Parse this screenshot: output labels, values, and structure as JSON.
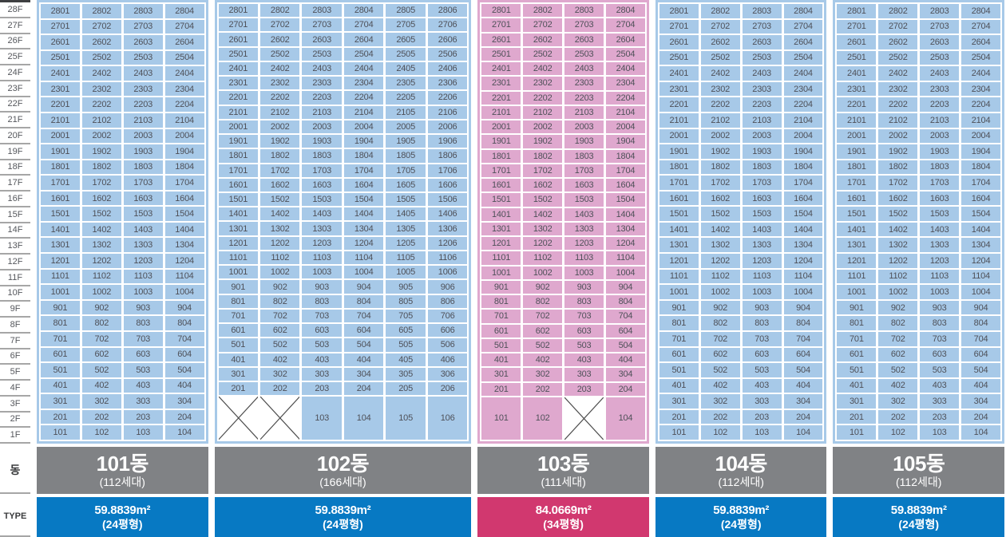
{
  "axis": {
    "dong_label": "동",
    "type_label": "TYPE",
    "floors": [
      "28F",
      "27F",
      "26F",
      "25F",
      "24F",
      "23F",
      "22F",
      "21F",
      "20F",
      "19F",
      "18F",
      "17F",
      "16F",
      "15F",
      "14F",
      "13F",
      "12F",
      "11F",
      "10F",
      "9F",
      "8F",
      "7F",
      "6F",
      "5F",
      "4F",
      "3F",
      "2F",
      "1F"
    ]
  },
  "colors": {
    "cell_blue": "#a7c9e8",
    "cell_pink": "#dfa8ce",
    "header_gray": "#808285",
    "type_blue": "#0779c3",
    "type_pink": "#d1386f",
    "cross_line": "#4c4c4c",
    "cell_text": "#4e5058"
  },
  "buildings": [
    {
      "name": "101동",
      "households": "(112세대)",
      "theme": "blue",
      "area_value": "59.8839",
      "area_unit": "m²",
      "pyeong": "(24평형)",
      "units_per_floor": 4,
      "units": [
        [
          2801,
          2802,
          2803,
          2804
        ],
        [
          2701,
          2702,
          2703,
          2704
        ],
        [
          2601,
          2602,
          2603,
          2604
        ],
        [
          2501,
          2502,
          2503,
          2504
        ],
        [
          2401,
          2402,
          2403,
          2404
        ],
        [
          2301,
          2302,
          2303,
          2304
        ],
        [
          2201,
          2202,
          2203,
          2204
        ],
        [
          2101,
          2102,
          2103,
          2104
        ],
        [
          2001,
          2002,
          2003,
          2004
        ],
        [
          1901,
          1902,
          1903,
          1904
        ],
        [
          1801,
          1802,
          1803,
          1804
        ],
        [
          1701,
          1702,
          1703,
          1704
        ],
        [
          1601,
          1602,
          1603,
          1604
        ],
        [
          1501,
          1502,
          1503,
          1504
        ],
        [
          1401,
          1402,
          1403,
          1404
        ],
        [
          1301,
          1302,
          1303,
          1304
        ],
        [
          1201,
          1202,
          1203,
          1204
        ],
        [
          1101,
          1102,
          1103,
          1104
        ],
        [
          1001,
          1002,
          1003,
          1004
        ],
        [
          901,
          902,
          903,
          904
        ],
        [
          801,
          802,
          803,
          804
        ],
        [
          701,
          702,
          703,
          704
        ],
        [
          601,
          602,
          603,
          604
        ],
        [
          501,
          502,
          503,
          504
        ],
        [
          401,
          402,
          403,
          404
        ],
        [
          301,
          302,
          303,
          304
        ],
        [
          201,
          202,
          203,
          204
        ],
        [
          101,
          102,
          103,
          104
        ]
      ]
    },
    {
      "name": "102동",
      "households": "(166세대)",
      "theme": "blue",
      "area_value": "59.8839",
      "area_unit": "m²",
      "pyeong": "(24평형)",
      "units_per_floor": 6,
      "units": [
        [
          2801,
          2802,
          2803,
          2804,
          2805,
          2806
        ],
        [
          2701,
          2702,
          2703,
          2704,
          2705,
          2706
        ],
        [
          2601,
          2602,
          2603,
          2604,
          2605,
          2606
        ],
        [
          2501,
          2502,
          2503,
          2504,
          2505,
          2506
        ],
        [
          2401,
          2402,
          2403,
          2404,
          2405,
          2406
        ],
        [
          2301,
          2302,
          2303,
          2304,
          2305,
          2306
        ],
        [
          2201,
          2202,
          2203,
          2204,
          2205,
          2206
        ],
        [
          2101,
          2102,
          2103,
          2104,
          2105,
          2106
        ],
        [
          2001,
          2002,
          2003,
          2004,
          2005,
          2006
        ],
        [
          1901,
          1902,
          1903,
          1904,
          1905,
          1906
        ],
        [
          1801,
          1802,
          1803,
          1804,
          1805,
          1806
        ],
        [
          1701,
          1702,
          1703,
          1704,
          1705,
          1706
        ],
        [
          1601,
          1602,
          1603,
          1604,
          1605,
          1606
        ],
        [
          1501,
          1502,
          1503,
          1504,
          1505,
          1506
        ],
        [
          1401,
          1402,
          1403,
          1404,
          1405,
          1406
        ],
        [
          1301,
          1302,
          1303,
          1304,
          1305,
          1306
        ],
        [
          1201,
          1202,
          1203,
          1204,
          1205,
          1206
        ],
        [
          1101,
          1102,
          1103,
          1104,
          1105,
          1106
        ],
        [
          1001,
          1002,
          1003,
          1004,
          1005,
          1006
        ],
        [
          901,
          902,
          903,
          904,
          905,
          906
        ],
        [
          801,
          802,
          803,
          804,
          805,
          806
        ],
        [
          701,
          702,
          703,
          704,
          705,
          706
        ],
        [
          601,
          602,
          603,
          604,
          605,
          606
        ],
        [
          501,
          502,
          503,
          504,
          505,
          506
        ],
        [
          401,
          402,
          403,
          404,
          405,
          406
        ],
        [
          301,
          302,
          303,
          304,
          305,
          306
        ],
        [
          201,
          202,
          203,
          204,
          205,
          206
        ],
        [
          null,
          null,
          103,
          104,
          105,
          106
        ]
      ]
    },
    {
      "name": "103동",
      "households": "(111세대)",
      "theme": "pink",
      "area_value": "84.0669",
      "area_unit": "m²",
      "pyeong": "(34평형)",
      "units_per_floor": 4,
      "units": [
        [
          2801,
          2802,
          2803,
          2804
        ],
        [
          2701,
          2702,
          2703,
          2704
        ],
        [
          2601,
          2602,
          2603,
          2604
        ],
        [
          2501,
          2502,
          2503,
          2504
        ],
        [
          2401,
          2402,
          2403,
          2404
        ],
        [
          2301,
          2302,
          2303,
          2304
        ],
        [
          2201,
          2202,
          2203,
          2204
        ],
        [
          2101,
          2102,
          2103,
          2104
        ],
        [
          2001,
          2002,
          2003,
          2004
        ],
        [
          1901,
          1902,
          1903,
          1904
        ],
        [
          1801,
          1802,
          1803,
          1804
        ],
        [
          1701,
          1702,
          1703,
          1704
        ],
        [
          1601,
          1602,
          1603,
          1604
        ],
        [
          1501,
          1502,
          1503,
          1504
        ],
        [
          1401,
          1402,
          1403,
          1404
        ],
        [
          1301,
          1302,
          1303,
          1304
        ],
        [
          1201,
          1202,
          1203,
          1204
        ],
        [
          1101,
          1102,
          1103,
          1104
        ],
        [
          1001,
          1002,
          1003,
          1004
        ],
        [
          901,
          902,
          903,
          904
        ],
        [
          801,
          802,
          803,
          804
        ],
        [
          701,
          702,
          703,
          704
        ],
        [
          601,
          602,
          603,
          604
        ],
        [
          501,
          502,
          503,
          504
        ],
        [
          401,
          402,
          403,
          404
        ],
        [
          301,
          302,
          303,
          304
        ],
        [
          201,
          202,
          203,
          204
        ],
        [
          101,
          102,
          null,
          104
        ]
      ]
    },
    {
      "name": "104동",
      "households": "(112세대)",
      "theme": "blue",
      "area_value": "59.8839",
      "area_unit": "m²",
      "pyeong": "(24평형)",
      "units_per_floor": 4,
      "units": [
        [
          2801,
          2802,
          2803,
          2804
        ],
        [
          2701,
          2702,
          2703,
          2704
        ],
        [
          2601,
          2602,
          2603,
          2604
        ],
        [
          2501,
          2502,
          2503,
          2504
        ],
        [
          2401,
          2402,
          2403,
          2404
        ],
        [
          2301,
          2302,
          2303,
          2304
        ],
        [
          2201,
          2202,
          2203,
          2204
        ],
        [
          2101,
          2102,
          2103,
          2104
        ],
        [
          2001,
          2002,
          2003,
          2004
        ],
        [
          1901,
          1902,
          1903,
          1904
        ],
        [
          1801,
          1802,
          1803,
          1804
        ],
        [
          1701,
          1702,
          1703,
          1704
        ],
        [
          1601,
          1602,
          1603,
          1604
        ],
        [
          1501,
          1502,
          1503,
          1504
        ],
        [
          1401,
          1402,
          1403,
          1404
        ],
        [
          1301,
          1302,
          1303,
          1304
        ],
        [
          1201,
          1202,
          1203,
          1204
        ],
        [
          1101,
          1102,
          1103,
          1104
        ],
        [
          1001,
          1002,
          1003,
          1004
        ],
        [
          901,
          902,
          903,
          904
        ],
        [
          801,
          802,
          803,
          804
        ],
        [
          701,
          702,
          703,
          704
        ],
        [
          601,
          602,
          603,
          604
        ],
        [
          501,
          502,
          503,
          504
        ],
        [
          401,
          402,
          403,
          404
        ],
        [
          301,
          302,
          303,
          304
        ],
        [
          201,
          202,
          203,
          204
        ],
        [
          101,
          102,
          103,
          104
        ]
      ]
    },
    {
      "name": "105동",
      "households": "(112세대)",
      "theme": "blue",
      "area_value": "59.8839",
      "area_unit": "m²",
      "pyeong": "(24평형)",
      "units_per_floor": 4,
      "units": [
        [
          2801,
          2802,
          2803,
          2804
        ],
        [
          2701,
          2702,
          2703,
          2704
        ],
        [
          2601,
          2602,
          2603,
          2604
        ],
        [
          2501,
          2502,
          2503,
          2504
        ],
        [
          2401,
          2402,
          2403,
          2404
        ],
        [
          2301,
          2302,
          2303,
          2304
        ],
        [
          2201,
          2202,
          2203,
          2204
        ],
        [
          2101,
          2102,
          2103,
          2104
        ],
        [
          2001,
          2002,
          2003,
          2004
        ],
        [
          1901,
          1902,
          1903,
          1904
        ],
        [
          1801,
          1802,
          1803,
          1804
        ],
        [
          1701,
          1702,
          1703,
          1704
        ],
        [
          1601,
          1602,
          1603,
          1604
        ],
        [
          1501,
          1502,
          1503,
          1504
        ],
        [
          1401,
          1402,
          1403,
          1404
        ],
        [
          1301,
          1302,
          1303,
          1304
        ],
        [
          1201,
          1202,
          1203,
          1204
        ],
        [
          1101,
          1102,
          1103,
          1104
        ],
        [
          1001,
          1002,
          1003,
          1004
        ],
        [
          901,
          902,
          903,
          904
        ],
        [
          801,
          802,
          803,
          804
        ],
        [
          701,
          702,
          703,
          704
        ],
        [
          601,
          602,
          603,
          604
        ],
        [
          501,
          502,
          503,
          504
        ],
        [
          401,
          402,
          403,
          404
        ],
        [
          301,
          302,
          303,
          304
        ],
        [
          201,
          202,
          203,
          204
        ],
        [
          101,
          102,
          103,
          104
        ]
      ]
    }
  ]
}
